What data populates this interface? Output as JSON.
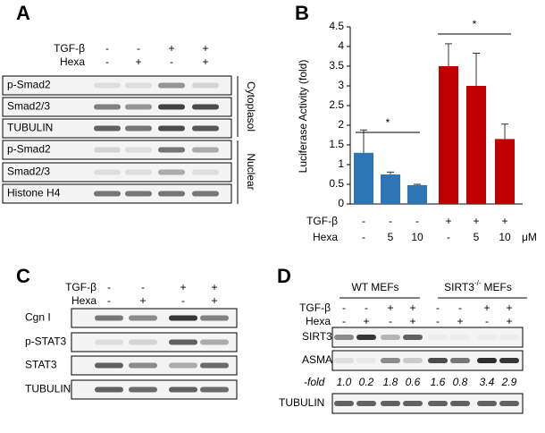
{
  "panel_a": {
    "letter": "A",
    "header": [
      {
        "label": "TGF-β",
        "signs": [
          "-",
          "-",
          "+",
          "+"
        ]
      },
      {
        "label": "Hexa",
        "signs": [
          "-",
          "+",
          "-",
          "+"
        ]
      }
    ],
    "rows": [
      "p-Smad2",
      "Smad2/3",
      "TUBULIN",
      "p-Smad2",
      "Smad2/3",
      "Histone H4"
    ],
    "fractions": [
      "Cytoplasol",
      "Nuclear"
    ]
  },
  "chart_data": {
    "type": "bar",
    "letter": "B",
    "y_label": "Luciferase Activity (fold)",
    "category_rows": [
      {
        "label": "TGF-β",
        "values": [
          "-",
          "-",
          "-",
          "+",
          "+",
          "+"
        ]
      },
      {
        "label": "Hexa",
        "values": [
          "-",
          "5",
          "10",
          "-",
          "5",
          "10"
        ]
      }
    ],
    "unit": "μM",
    "values": [
      1.3,
      0.75,
      0.48,
      3.5,
      3.0,
      1.65
    ],
    "errors": [
      0.58,
      0.06,
      0.02,
      0.57,
      0.83,
      0.38
    ],
    "colors": [
      "#2e75b6",
      "#2e75b6",
      "#2e75b6",
      "#c00000",
      "#c00000",
      "#c00000"
    ],
    "ylim": [
      0,
      4.5
    ],
    "yticks": [
      0,
      0.5,
      1,
      1.5,
      2,
      2.5,
      3,
      3.5,
      4,
      4.5
    ],
    "annotations": [
      "*",
      "*"
    ]
  },
  "panel_c": {
    "letter": "C",
    "header": [
      {
        "label": "TGF-β",
        "signs": [
          "-",
          "-",
          "+",
          "+"
        ]
      },
      {
        "label": "Hexa",
        "signs": [
          "-",
          "+",
          "-",
          "+"
        ]
      }
    ],
    "rows": [
      "Cgn I",
      "p-STAT3",
      "STAT3",
      "TUBULIN"
    ]
  },
  "panel_d": {
    "letter": "D",
    "groups": [
      {
        "label": "WT MEFs"
      },
      {
        "label": "SIRT3",
        "superscript": "-/-",
        "suffix": "MEFs"
      }
    ],
    "header": [
      {
        "label": "TGF-β",
        "signs": [
          "-",
          "-",
          "+",
          "+",
          "-",
          "-",
          "+",
          "+"
        ]
      },
      {
        "label": "Hexa",
        "signs": [
          "-",
          "+",
          "-",
          "+",
          "-",
          "+",
          "-",
          "+"
        ]
      }
    ],
    "rows": [
      "SIRT3",
      "ASMA"
    ],
    "fold_label": "-fold",
    "fold_values": [
      "1.0",
      "0.2",
      "1.8",
      "0.6",
      "1.6",
      "0.8",
      "3.4",
      "2.9"
    ],
    "loading_row": "TUBULIN"
  }
}
